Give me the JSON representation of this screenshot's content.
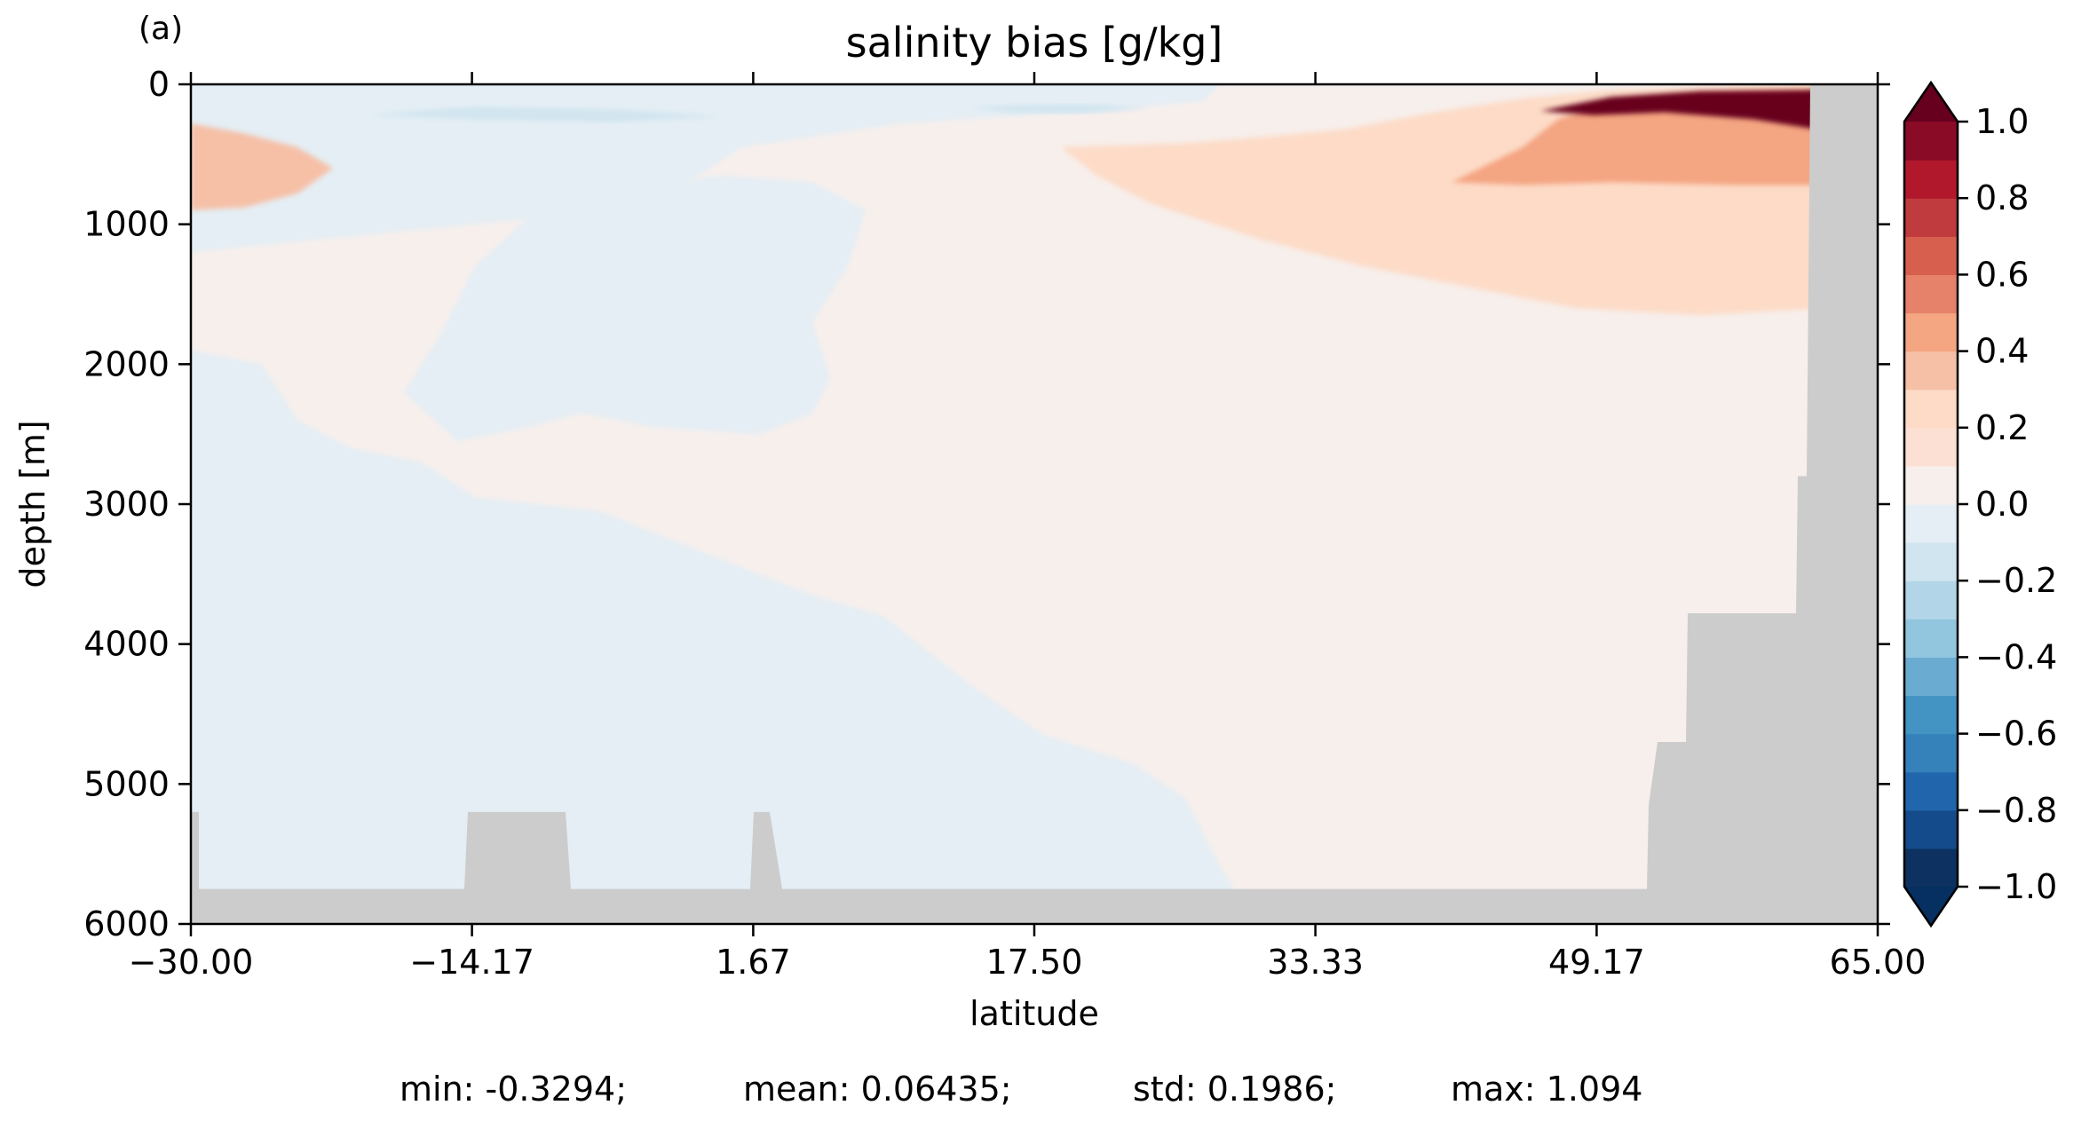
{
  "panel_label": "(a)",
  "chart_data": {
    "type": "heatmap",
    "title": "salinity bias [g/kg]",
    "xlabel": "latitude",
    "ylabel": "depth [m]",
    "xlim": [
      -30.0,
      65.0
    ],
    "ylim": [
      6000,
      0
    ],
    "y_inverted": true,
    "xticks": [
      "−30.00",
      "−14.17",
      "1.67",
      "17.50",
      "33.33",
      "49.17",
      "65.00"
    ],
    "xtick_values": [
      -30.0,
      -14.17,
      1.67,
      17.5,
      33.33,
      49.17,
      65.0
    ],
    "yticks": [
      "0",
      "1000",
      "2000",
      "3000",
      "4000",
      "5000",
      "6000"
    ],
    "ytick_values": [
      0,
      1000,
      2000,
      3000,
      4000,
      5000,
      6000
    ],
    "grid": false,
    "colormap": "RdBu_r",
    "land_color": "#cccccc",
    "colorbar": {
      "position": "right",
      "extend": "both",
      "vmin": -1.0,
      "vmax": 1.0,
      "levels": 20,
      "ticks": [
        "1.0",
        "0.8",
        "0.6",
        "0.4",
        "0.2",
        "0.0",
        "−0.2",
        "−0.4",
        "−0.6",
        "−0.8",
        "−1.0"
      ],
      "tick_values": [
        1.0,
        0.8,
        0.6,
        0.4,
        0.2,
        0.0,
        -0.2,
        -0.4,
        -0.6,
        -0.8,
        -1.0
      ],
      "colors": [
        "#0d3160",
        "#144b8a",
        "#2166ac",
        "#3581ba",
        "#4393c3",
        "#6aabd1",
        "#92c5de",
        "#b2d6e8",
        "#d1e5f0",
        "#e4eef4",
        "#f7efec",
        "#fbe0d3",
        "#fddbc7",
        "#f6c0a7",
        "#f4a582",
        "#e6816a",
        "#d6604d",
        "#c03b3e",
        "#b2182b",
        "#8a0b25"
      ],
      "over_color": "#67001f",
      "under_color": "#053061"
    },
    "field_regions": [
      {
        "value": -0.05,
        "description": "large weakly fresh region, tropics and deep south"
      },
      {
        "value": 0.05,
        "description": "broad weakly salty deep region, north"
      },
      {
        "value": 0.25,
        "description": "salty upper 1500 m, north of 30N"
      },
      {
        "value": 0.45,
        "description": "saltier subsurface core 40N-62N"
      },
      {
        "value": 1.0,
        "description": "strong near-surface maximum 47N-62N"
      },
      {
        "value": 0.3,
        "description": "southern upper-ocean salty lens near 30S, 500 m"
      },
      {
        "value": -0.15,
        "description": "thin fresh near-surface streaks in tropics"
      }
    ],
    "bathymetry_profile": [
      [
        -30.0,
        5750
      ],
      [
        -14.6,
        5750
      ],
      [
        -14.4,
        5200
      ],
      [
        -8.9,
        5200
      ],
      [
        -8.6,
        5750
      ],
      [
        1.5,
        5750
      ],
      [
        1.7,
        5200
      ],
      [
        2.6,
        5200
      ],
      [
        3.3,
        5750
      ],
      [
        52.0,
        5750
      ],
      [
        52.1,
        5150
      ],
      [
        52.6,
        4700
      ],
      [
        54.2,
        4700
      ],
      [
        54.3,
        3780
      ],
      [
        60.4,
        3780
      ],
      [
        60.5,
        2800
      ],
      [
        61.0,
        2800
      ],
      [
        61.2,
        0
      ],
      [
        65.0,
        0
      ]
    ]
  },
  "stats": {
    "min_label": "min: -0.3294;",
    "mean_label": "mean: 0.06435;",
    "std_label": "std: 0.1986;",
    "max_label": "max: 1.094"
  }
}
